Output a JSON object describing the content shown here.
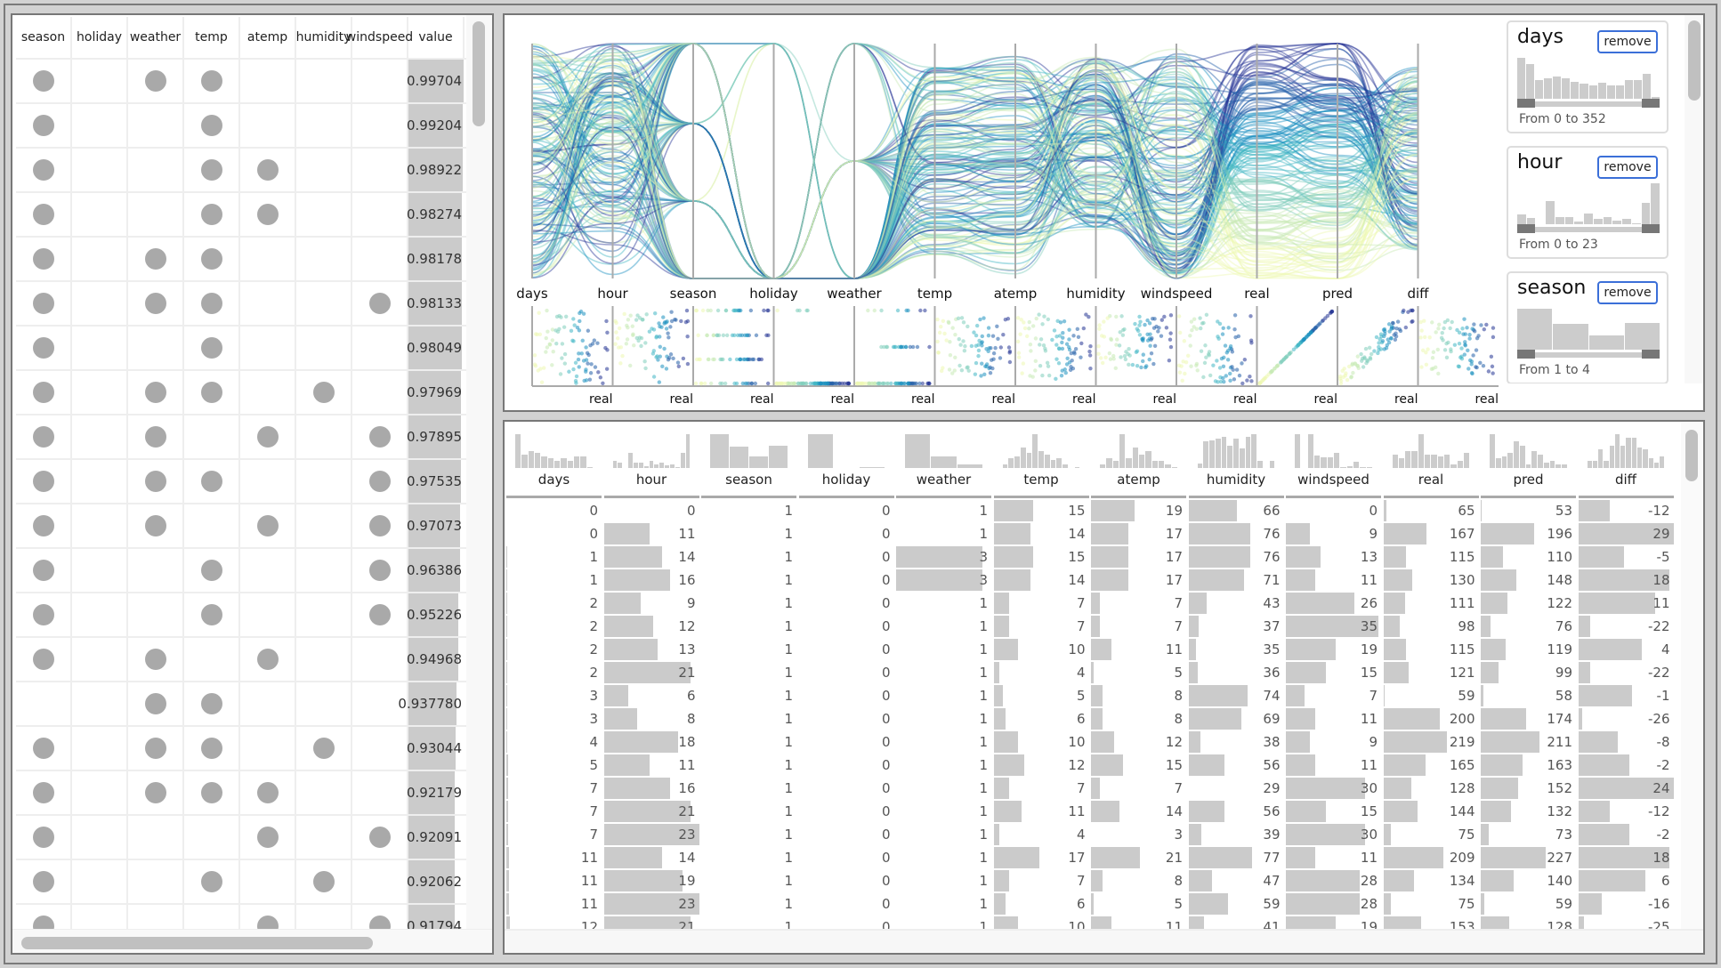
{
  "left_table": {
    "columns": [
      "season",
      "holiday",
      "weather",
      "temp",
      "atemp",
      "humidity",
      "windspeed",
      "value"
    ],
    "rows": [
      {
        "flags": [
          1,
          0,
          1,
          1,
          0,
          0,
          0
        ],
        "value": "0.99704"
      },
      {
        "flags": [
          1,
          0,
          0,
          1,
          0,
          0,
          0
        ],
        "value": "0.99204"
      },
      {
        "flags": [
          1,
          0,
          0,
          1,
          1,
          0,
          0
        ],
        "value": "0.98922"
      },
      {
        "flags": [
          1,
          0,
          0,
          1,
          1,
          0,
          0
        ],
        "value": "0.98274"
      },
      {
        "flags": [
          1,
          0,
          1,
          1,
          0,
          0,
          0
        ],
        "value": "0.98178"
      },
      {
        "flags": [
          1,
          0,
          1,
          1,
          0,
          0,
          1
        ],
        "value": "0.98133"
      },
      {
        "flags": [
          1,
          0,
          0,
          1,
          0,
          0,
          0
        ],
        "value": "0.98049"
      },
      {
        "flags": [
          1,
          0,
          1,
          1,
          0,
          1,
          0
        ],
        "value": "0.97969"
      },
      {
        "flags": [
          1,
          0,
          1,
          0,
          1,
          0,
          1
        ],
        "value": "0.97895"
      },
      {
        "flags": [
          1,
          0,
          1,
          1,
          0,
          0,
          1
        ],
        "value": "0.97535"
      },
      {
        "flags": [
          1,
          0,
          1,
          0,
          1,
          0,
          1
        ],
        "value": "0.97073"
      },
      {
        "flags": [
          1,
          0,
          0,
          1,
          0,
          0,
          1
        ],
        "value": "0.96386"
      },
      {
        "flags": [
          1,
          0,
          0,
          1,
          0,
          0,
          1
        ],
        "value": "0.95226"
      },
      {
        "flags": [
          1,
          0,
          1,
          0,
          1,
          0,
          0
        ],
        "value": "0.94968"
      },
      {
        "flags": [
          0,
          0,
          1,
          1,
          0,
          0,
          0
        ],
        "value": "0.937780"
      },
      {
        "flags": [
          1,
          0,
          1,
          1,
          0,
          1,
          0
        ],
        "value": "0.93044"
      },
      {
        "flags": [
          1,
          0,
          1,
          1,
          1,
          0,
          0
        ],
        "value": "0.92179"
      },
      {
        "flags": [
          1,
          0,
          0,
          0,
          1,
          0,
          1
        ],
        "value": "0.92091"
      },
      {
        "flags": [
          1,
          0,
          0,
          1,
          0,
          1,
          0
        ],
        "value": "0.92062"
      },
      {
        "flags": [
          1,
          0,
          0,
          0,
          1,
          0,
          1
        ],
        "value": "0.91794"
      }
    ]
  },
  "parallel_coords": {
    "axes": [
      "days",
      "hour",
      "season",
      "holiday",
      "weather",
      "temp",
      "atemp",
      "humidity",
      "windspeed",
      "real",
      "pred",
      "diff"
    ],
    "scatter_label": "real",
    "palette": [
      "#edf8b1",
      "#c7e9b4",
      "#7fcdbb",
      "#41b6c4",
      "#1d91c0",
      "#225ea8",
      "#253494"
    ]
  },
  "filters": [
    {
      "name": "days",
      "remove_label": "remove",
      "range_text": "From 0 to 352",
      "histogram": [
        10,
        8.5,
        4.5,
        5,
        5.5,
        5,
        4.2,
        3.8,
        3.2,
        4,
        3.2,
        3.2,
        4.5,
        4.5,
        6,
        0.5
      ]
    },
    {
      "name": "hour",
      "remove_label": "remove",
      "range_text": "From 0 to 23",
      "histogram": [
        2.5,
        1.6,
        0,
        5.6,
        1.8,
        1.8,
        0.6,
        2.6,
        1.2,
        1.8,
        0.8,
        1.2,
        0.2,
        5.2,
        10
      ]
    },
    {
      "name": "season",
      "remove_label": "remove",
      "range_text": "From 1 to 4",
      "histogram": [
        10,
        6.3,
        3.5,
        6.5
      ]
    }
  ],
  "data_table": {
    "columns": [
      {
        "name": "days",
        "histogram": [
          10,
          4,
          5,
          4.5,
          3.5,
          3,
          2,
          3,
          2,
          3.5,
          3.5,
          0.3
        ]
      },
      {
        "name": "hour",
        "histogram": [
          2,
          1.5,
          0,
          4,
          1.5,
          1.5,
          0.5,
          2,
          1,
          1.5,
          0.8,
          1,
          0.2,
          4,
          9
        ]
      },
      {
        "name": "season",
        "histogram": [
          10,
          6.3,
          3.5,
          6.5
        ]
      },
      {
        "name": "holiday",
        "histogram": [
          10,
          0,
          0.3
        ]
      },
      {
        "name": "weather",
        "histogram": [
          10,
          3.5,
          1
        ]
      },
      {
        "name": "temp",
        "histogram": [
          1,
          3,
          3.5,
          6,
          4.5,
          10,
          5,
          4,
          2.5,
          3,
          1,
          0,
          0.3
        ]
      },
      {
        "name": "atemp",
        "histogram": [
          1,
          3,
          2,
          10,
          3,
          6,
          4,
          5,
          2,
          2,
          1,
          0.3
        ]
      },
      {
        "name": "humidity",
        "histogram": [
          1,
          5.5,
          5.8,
          6,
          6.5,
          4.7,
          6,
          4,
          6.5,
          7,
          1.5,
          0,
          1.5
        ]
      },
      {
        "name": "windspeed",
        "histogram": [
          8,
          0,
          8,
          3,
          2.5,
          2.5,
          3.5,
          0.2,
          0.5,
          1.5,
          0.2,
          0.2
        ]
      },
      {
        "name": "real",
        "histogram": [
          4,
          3,
          5,
          5,
          10,
          4,
          4,
          3.5,
          4,
          1,
          2,
          4.5
        ]
      },
      {
        "name": "pred",
        "histogram": [
          10,
          3,
          3.5,
          4.5,
          8,
          6.5,
          1,
          5,
          4,
          1.5,
          2,
          1,
          1
        ]
      },
      {
        "name": "diff",
        "histogram": [
          2,
          2,
          5,
          2,
          6,
          9,
          6,
          8,
          8,
          5.5,
          5,
          2.5,
          1.5,
          3
        ]
      }
    ],
    "rows": [
      [
        0,
        0,
        1,
        0,
        1,
        15,
        19,
        66,
        0,
        65,
        53,
        -12
      ],
      [
        0,
        11,
        1,
        0,
        1,
        14,
        17,
        76,
        9,
        167,
        196,
        29
      ],
      [
        1,
        14,
        1,
        0,
        3,
        15,
        17,
        76,
        13,
        115,
        110,
        -5
      ],
      [
        1,
        16,
        1,
        0,
        3,
        14,
        17,
        71,
        11,
        130,
        148,
        18
      ],
      [
        2,
        9,
        1,
        0,
        1,
        7,
        7,
        43,
        26,
        111,
        122,
        11
      ],
      [
        2,
        12,
        1,
        0,
        1,
        7,
        7,
        37,
        35,
        98,
        76,
        -22
      ],
      [
        2,
        13,
        1,
        0,
        1,
        10,
        11,
        35,
        19,
        115,
        119,
        4
      ],
      [
        2,
        21,
        1,
        0,
        1,
        4,
        5,
        36,
        15,
        121,
        99,
        -22
      ],
      [
        3,
        6,
        1,
        0,
        1,
        5,
        8,
        74,
        7,
        59,
        58,
        -1
      ],
      [
        3,
        8,
        1,
        0,
        1,
        6,
        8,
        69,
        11,
        200,
        174,
        -26
      ],
      [
        4,
        18,
        1,
        0,
        1,
        10,
        12,
        38,
        9,
        219,
        211,
        -8
      ],
      [
        5,
        11,
        1,
        0,
        1,
        12,
        15,
        56,
        11,
        165,
        163,
        -2
      ],
      [
        7,
        16,
        1,
        0,
        1,
        7,
        7,
        29,
        30,
        128,
        152,
        24
      ],
      [
        7,
        21,
        1,
        0,
        1,
        11,
        14,
        56,
        15,
        144,
        132,
        -12
      ],
      [
        7,
        23,
        1,
        0,
        1,
        4,
        3,
        39,
        30,
        75,
        73,
        -2
      ],
      [
        11,
        14,
        1,
        0,
        1,
        17,
        21,
        77,
        11,
        209,
        227,
        18
      ],
      [
        11,
        19,
        1,
        0,
        1,
        7,
        8,
        47,
        28,
        134,
        140,
        6
      ],
      [
        11,
        23,
        1,
        0,
        1,
        6,
        5,
        59,
        28,
        75,
        59,
        -16
      ],
      [
        12,
        21,
        1,
        0,
        1,
        10,
        11,
        41,
        19,
        153,
        128,
        -25
      ]
    ]
  }
}
